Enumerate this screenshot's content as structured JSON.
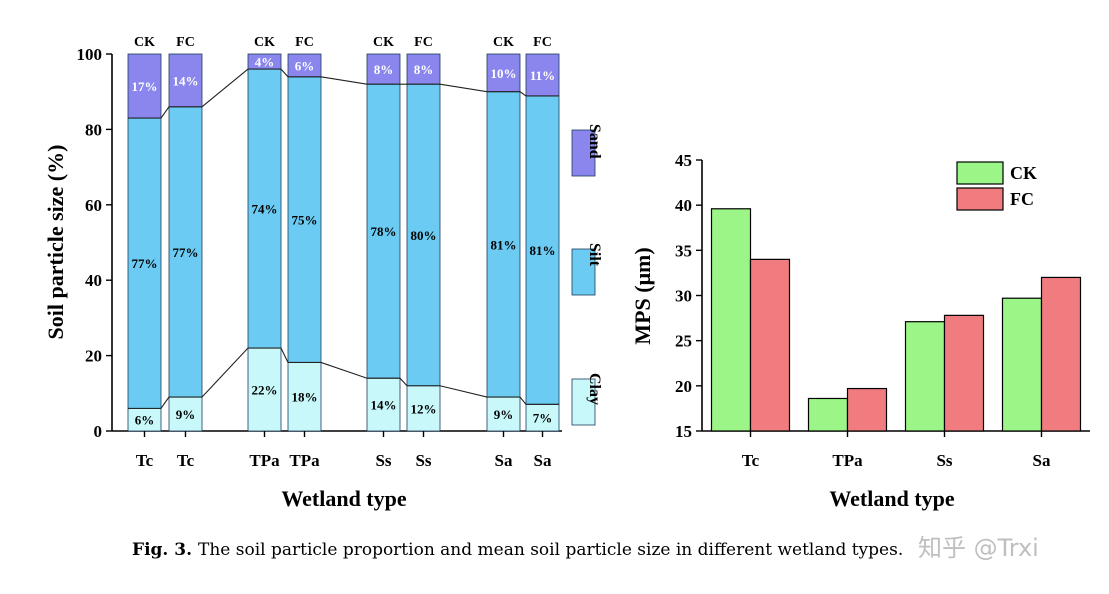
{
  "chart_data": [
    {
      "type": "bar",
      "stacked": true,
      "ylabel": "Soil particle size (%)",
      "xlabel": "Wetland type",
      "ylim": [
        0,
        100
      ],
      "yticks": [
        0,
        20,
        40,
        60,
        80,
        100
      ],
      "categories": [
        "Tc",
        "Tc",
        "TPa",
        "TPa",
        "Ss",
        "Ss",
        "Sa",
        "Sa"
      ],
      "treatments": [
        "CK",
        "FC",
        "CK",
        "FC",
        "CK",
        "FC",
        "CK",
        "FC"
      ],
      "series": [
        {
          "name": "Clay",
          "color": "#c8f8fa",
          "values": [
            6,
            9,
            22,
            18,
            14,
            12,
            9,
            7
          ],
          "labels": [
            "6%",
            "9%",
            "22%",
            "18%",
            "14%",
            "12%",
            "9%",
            "7%"
          ]
        },
        {
          "name": "Silt",
          "color": "#6bcbf2",
          "values": [
            77,
            77,
            74,
            75,
            78,
            80,
            81,
            81
          ],
          "labels": [
            "77%",
            "77%",
            "74%",
            "75%",
            "78%",
            "80%",
            "81%",
            "81%"
          ]
        },
        {
          "name": "Sand",
          "color": "#8a86ee",
          "values": [
            17,
            14,
            4,
            6,
            8,
            8,
            10,
            11
          ],
          "labels": [
            "17%",
            "14%",
            "4%",
            "6%",
            "8%",
            "8%",
            "10%",
            "11%"
          ]
        }
      ],
      "legend": "right-vertical"
    },
    {
      "type": "bar",
      "ylabel": "MPS (μm)",
      "xlabel": "Wetland type",
      "ylim": [
        15,
        45
      ],
      "yticks": [
        15,
        20,
        25,
        30,
        35,
        40,
        45
      ],
      "categories": [
        "Tc",
        "TPa",
        "Ss",
        "Sa"
      ],
      "series": [
        {
          "name": "CK",
          "color": "#9cf587",
          "values": [
            39.6,
            18.6,
            27.1,
            29.7
          ]
        },
        {
          "name": "FC",
          "color": "#f07c80",
          "values": [
            34.0,
            19.7,
            27.8,
            32.0
          ]
        }
      ],
      "legend": "top-right"
    }
  ],
  "caption": {
    "number": "Fig. 3.",
    "text": "The soil particle proportion and mean soil particle size in different wetland types."
  },
  "watermark": "知乎 @Trxi"
}
